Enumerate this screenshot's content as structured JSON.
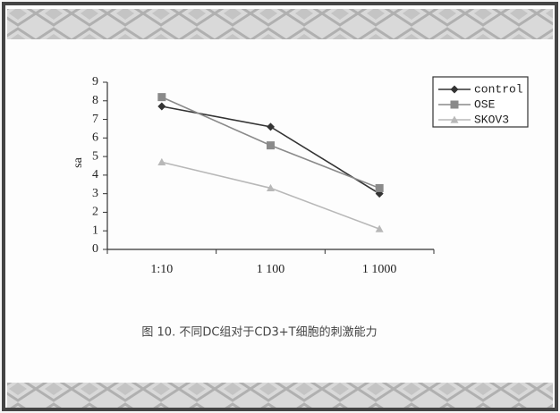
{
  "chart_data": {
    "type": "line",
    "y_label": "sa",
    "caption": "图 10. 不同DC组对于CD3+T细胞的刺激能力",
    "categories": [
      "1:10",
      "1 100",
      "1 1000"
    ],
    "series": [
      {
        "name": "control",
        "color": "#333333",
        "marker": "diamond",
        "values": [
          7.7,
          6.6,
          3.0
        ]
      },
      {
        "name": "OSE",
        "color": "#8a8a8a",
        "marker": "square",
        "values": [
          8.2,
          5.6,
          3.3
        ]
      },
      {
        "name": "SKOV3",
        "color": "#b8b8b8",
        "marker": "triangle",
        "values": [
          4.7,
          3.3,
          1.1
        ]
      }
    ],
    "ylim": [
      0,
      9
    ],
    "yticks": [
      0,
      1,
      2,
      3,
      4,
      5,
      6,
      7,
      8,
      9
    ]
  }
}
